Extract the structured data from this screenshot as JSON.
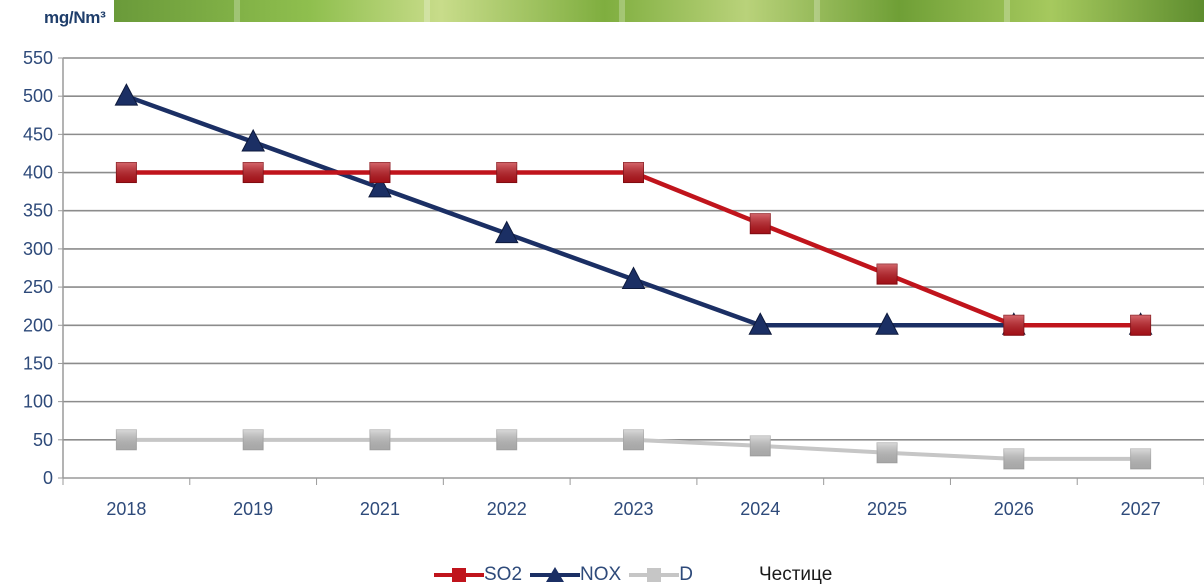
{
  "unit_label": "mg/Nm³",
  "legend_extra": "Честице",
  "colors": {
    "so2": "#c0141c",
    "nox": "#1b2f64",
    "dust": "#c6c6c6",
    "grid": "#8c8c8c",
    "axis_text": "#2e4a7a"
  },
  "chart_data": {
    "type": "line",
    "categories": [
      "2018",
      "2019",
      "2021",
      "2022",
      "2023",
      "2024",
      "2025",
      "2026",
      "2027"
    ],
    "ylim": [
      0,
      550
    ],
    "yticks": [
      0,
      50,
      100,
      150,
      200,
      250,
      300,
      350,
      400,
      450,
      500,
      550
    ],
    "grid": true,
    "legend_position": "bottom",
    "series": [
      {
        "name": "SO2",
        "marker": "square",
        "color": "#c0141c",
        "values": [
          400,
          400,
          400,
          400,
          400,
          333,
          267,
          200,
          200
        ]
      },
      {
        "name": "NOX",
        "marker": "triangle",
        "color": "#1b2f64",
        "values": [
          500,
          440,
          380,
          320,
          260,
          200,
          200,
          200,
          200
        ]
      },
      {
        "name": "D",
        "marker": "square",
        "color": "#c6c6c6",
        "values": [
          50,
          50,
          50,
          50,
          50,
          42,
          33,
          25,
          25
        ]
      }
    ]
  }
}
